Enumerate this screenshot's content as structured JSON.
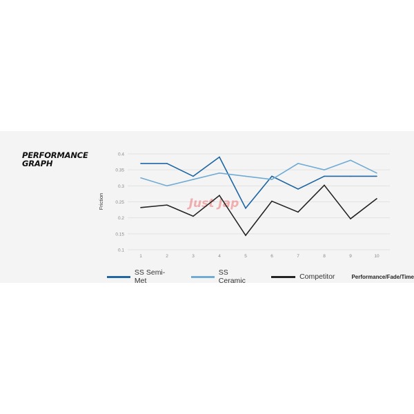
{
  "chart_data": {
    "type": "line",
    "title": "PERFORMANCE\nGRAPH",
    "xlabel": "Performance/Fade/Time",
    "ylabel": "Friction",
    "x": [
      1,
      2,
      3,
      4,
      5,
      6,
      7,
      8,
      9,
      10
    ],
    "ylim": [
      0.1,
      0.4
    ],
    "yticks": [
      "0.1",
      "0.15",
      "0.2",
      "0.25",
      "0.3",
      "0.35",
      "0.4"
    ],
    "grid": true,
    "legend": "bottom",
    "series": [
      {
        "name": "SS Semi-Met",
        "color": "#1f66a3",
        "values": [
          0.37,
          0.37,
          0.33,
          0.39,
          0.23,
          0.33,
          0.29,
          0.33,
          0.33,
          0.33
        ]
      },
      {
        "name": "SS Ceramic",
        "color": "#6fabd3",
        "values": [
          0.325,
          0.3,
          0.32,
          0.34,
          0.33,
          0.32,
          0.37,
          0.35,
          0.38,
          0.34
        ]
      },
      {
        "name": "Competitor",
        "color": "#222222",
        "values": [
          0.232,
          0.24,
          0.205,
          0.27,
          0.145,
          0.252,
          0.218,
          0.302,
          0.197,
          0.26
        ]
      }
    ],
    "watermark": "Just Jap"
  }
}
